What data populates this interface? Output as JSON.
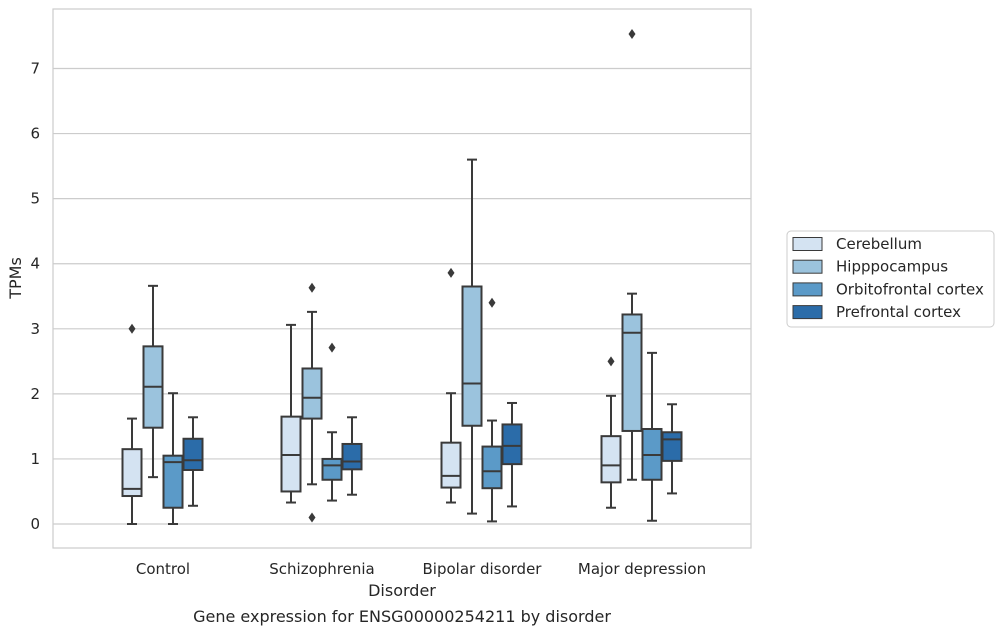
{
  "chart_data": {
    "type": "box",
    "title": "",
    "caption": "Gene expression for ENSG00000254211 by disorder",
    "xlabel": "Disorder",
    "ylabel": "TPMs",
    "ylim": [
      -0.37,
      7.9
    ],
    "yticks": [
      0,
      1,
      2,
      3,
      4,
      5,
      6,
      7
    ],
    "grid": "y",
    "legend_position": "right",
    "categories": [
      "Control",
      "Schizophrenia",
      "Bipolar disorder",
      "Major depression"
    ],
    "series": [
      {
        "name": "Cerebellum",
        "color": "#d4e3f2",
        "boxes": [
          {
            "whisker_low": 0.0,
            "q1": 0.43,
            "median": 0.54,
            "q3": 1.15,
            "whisker_high": 1.62,
            "outliers": [
              3.0
            ]
          },
          {
            "whisker_low": 0.33,
            "q1": 0.5,
            "median": 1.06,
            "q3": 1.65,
            "whisker_high": 3.06,
            "outliers": []
          },
          {
            "whisker_low": 0.33,
            "q1": 0.56,
            "median": 0.74,
            "q3": 1.25,
            "whisker_high": 2.01,
            "outliers": [
              3.86
            ]
          },
          {
            "whisker_low": 0.25,
            "q1": 0.64,
            "median": 0.9,
            "q3": 1.35,
            "whisker_high": 1.97,
            "outliers": [
              2.5
            ]
          }
        ]
      },
      {
        "name": "Hipppocampus",
        "color": "#9bc3dd",
        "boxes": [
          {
            "whisker_low": 0.72,
            "q1": 1.48,
            "median": 2.11,
            "q3": 2.73,
            "whisker_high": 3.66,
            "outliers": []
          },
          {
            "whisker_low": 0.61,
            "q1": 1.62,
            "median": 1.94,
            "q3": 2.39,
            "whisker_high": 3.26,
            "outliers": [
              3.63,
              0.1
            ]
          },
          {
            "whisker_low": 0.16,
            "q1": 1.51,
            "median": 2.16,
            "q3": 3.65,
            "whisker_high": 5.6,
            "outliers": []
          },
          {
            "whisker_low": 0.68,
            "q1": 1.43,
            "median": 2.94,
            "q3": 3.22,
            "whisker_high": 3.54,
            "outliers": [
              7.53
            ]
          }
        ]
      },
      {
        "name": "Orbitofrontal cortex",
        "color": "#5b9ac8",
        "boxes": [
          {
            "whisker_low": 0.0,
            "q1": 0.25,
            "median": 0.95,
            "q3": 1.05,
            "whisker_high": 2.01,
            "outliers": []
          },
          {
            "whisker_low": 0.36,
            "q1": 0.68,
            "median": 0.9,
            "q3": 1.0,
            "whisker_high": 1.41,
            "outliers": [
              2.71
            ]
          },
          {
            "whisker_low": 0.04,
            "q1": 0.55,
            "median": 0.81,
            "q3": 1.19,
            "whisker_high": 1.59,
            "outliers": [
              3.4
            ]
          },
          {
            "whisker_low": 0.05,
            "q1": 0.68,
            "median": 1.06,
            "q3": 1.46,
            "whisker_high": 2.63,
            "outliers": []
          }
        ]
      },
      {
        "name": "Prefrontal cortex",
        "color": "#2b6ca9",
        "boxes": [
          {
            "whisker_low": 0.28,
            "q1": 0.83,
            "median": 0.98,
            "q3": 1.31,
            "whisker_high": 1.64,
            "outliers": []
          },
          {
            "whisker_low": 0.45,
            "q1": 0.84,
            "median": 0.96,
            "q3": 1.23,
            "whisker_high": 1.64,
            "outliers": []
          },
          {
            "whisker_low": 0.27,
            "q1": 0.92,
            "median": 1.2,
            "q3": 1.53,
            "whisker_high": 1.86,
            "outliers": []
          },
          {
            "whisker_low": 0.47,
            "q1": 0.97,
            "median": 1.3,
            "q3": 1.41,
            "whisker_high": 1.84,
            "outliers": []
          }
        ]
      }
    ]
  }
}
